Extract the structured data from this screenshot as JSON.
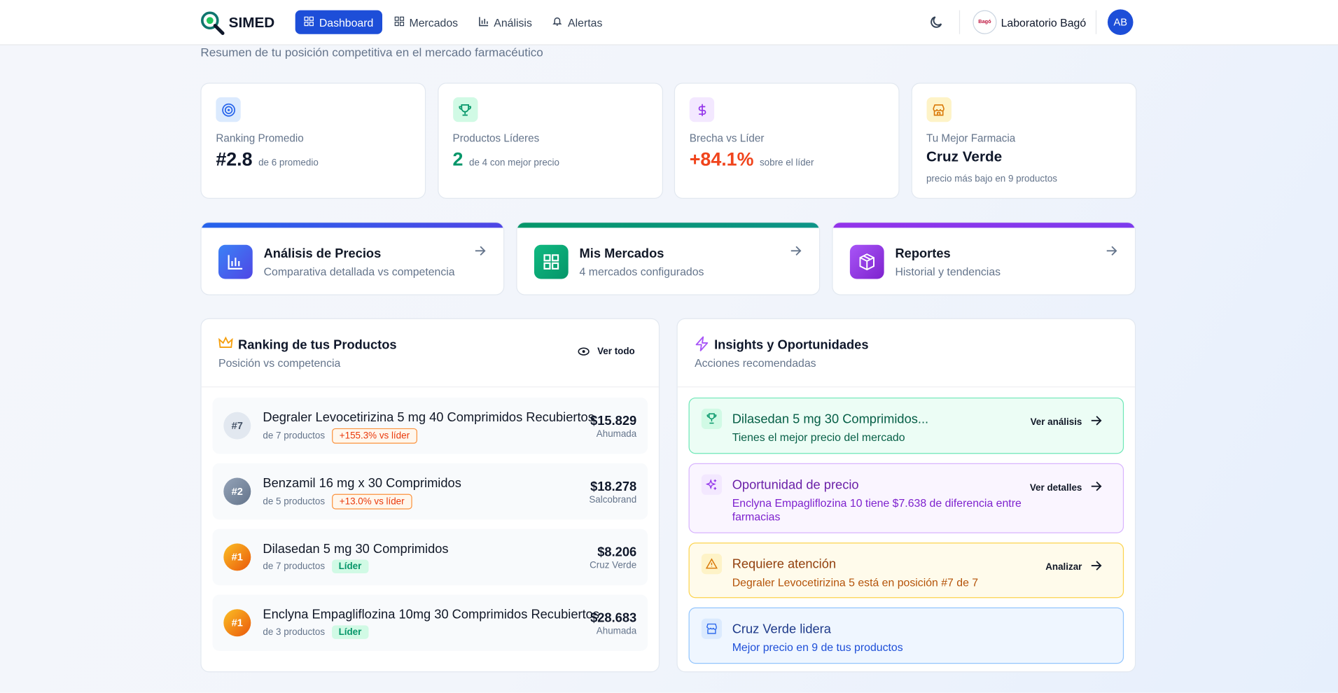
{
  "header": {
    "brand": "SIMED",
    "nav": [
      "Dashboard",
      "Mercados",
      "Análisis",
      "Alertas"
    ],
    "org_logo": "Bagó",
    "org": "Laboratorio Bagó",
    "avatar": "AB"
  },
  "subtitle": "Resumen de tu posición competitiva en el mercado farmacéutico",
  "stats": [
    {
      "label": "Ranking Promedio",
      "value": "#2.8",
      "note": "de 6 promedio"
    },
    {
      "label": "Productos Líderes",
      "value": "2",
      "note": "de 4 con mejor precio"
    },
    {
      "label": "Brecha vs Líder",
      "value": "+84.1%",
      "note": "sobre el líder"
    },
    {
      "label": "Tu Mejor Farmacia",
      "value": "Cruz Verde",
      "note": "precio más bajo en 9 productos"
    }
  ],
  "links": [
    {
      "title": "Análisis de Precios",
      "desc": "Comparativa detallada vs competencia"
    },
    {
      "title": "Mis Mercados",
      "desc": "4 mercados configurados"
    },
    {
      "title": "Reportes",
      "desc": "Historial y tendencias"
    }
  ],
  "ranking": {
    "title": "Ranking de tus Productos",
    "subtitle": "Posición vs competencia",
    "action": "Ver todo",
    "items": [
      {
        "rank": "#7",
        "name": "Degraler Levocetirizina 5 mg 40 Comprimidos Recubiertos",
        "count": "de 7 productos",
        "badge": "+155.3% vs líder",
        "price": "$15.829",
        "store": "Ahumada"
      },
      {
        "rank": "#2",
        "name": "Benzamil 16 mg x 30 Comprimidos",
        "count": "de 5 productos",
        "badge": "+13.0% vs líder",
        "price": "$18.278",
        "store": "Salcobrand"
      },
      {
        "rank": "#1",
        "name": "Dilasedan 5 mg 30 Comprimidos",
        "count": "de 7 productos",
        "badge": "Líder",
        "price": "$8.206",
        "store": "Cruz Verde"
      },
      {
        "rank": "#1",
        "name": "Enclyna Empagliflozina 10mg 30 Comprimidos Recubiertos",
        "count": "de 3 productos",
        "badge": "Líder",
        "price": "$28.683",
        "store": "Ahumada"
      }
    ]
  },
  "insights": {
    "title": "Insights y Oportunidades",
    "subtitle": "Acciones recomendadas",
    "items": [
      {
        "title": "Dilasedan 5 mg 30 Comprimidos...",
        "text": "Tienes el mejor precio del mercado",
        "action": "Ver análisis"
      },
      {
        "title": "Oportunidad de precio",
        "text": "Enclyna Empagliflozina 10 tiene $7.638 de diferencia entre farmacias",
        "action": "Ver detalles"
      },
      {
        "title": "Requiere atención",
        "text": "Degraler Levocetirizina 5 está en posición #7 de 7",
        "action": "Analizar"
      },
      {
        "title": "Cruz Verde lidera",
        "text": "Mejor precio en 9 de tus productos"
      }
    ]
  }
}
